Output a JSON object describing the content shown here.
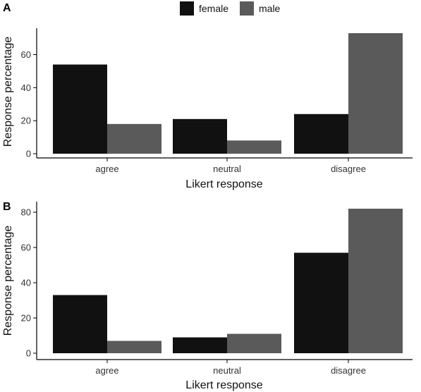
{
  "legend": [
    {
      "label": "female",
      "color": "#111111"
    },
    {
      "label": "male",
      "color": "#5a5a5a"
    }
  ],
  "chart_data": [
    {
      "type": "bar",
      "panel_label": "A",
      "categories": [
        "agree",
        "neutral",
        "disagree"
      ],
      "series": [
        {
          "name": "female",
          "values": [
            54,
            21,
            24
          ]
        },
        {
          "name": "male",
          "values": [
            18,
            8,
            73
          ]
        }
      ],
      "xlabel": "Likert response",
      "ylabel": "Response percentage",
      "yticks": [
        0,
        20,
        40,
        60
      ],
      "ylim": [
        0,
        76
      ],
      "grid": false,
      "legend": "top"
    },
    {
      "type": "bar",
      "panel_label": "B",
      "categories": [
        "agree",
        "neutral",
        "disagree"
      ],
      "series": [
        {
          "name": "female",
          "values": [
            33,
            9,
            57
          ]
        },
        {
          "name": "male",
          "values": [
            7,
            11,
            82
          ]
        }
      ],
      "xlabel": "Likert response",
      "ylabel": "Response percentage",
      "yticks": [
        0,
        20,
        40,
        60,
        80
      ],
      "ylim": [
        0,
        86
      ],
      "grid": false,
      "legend": "top"
    }
  ]
}
